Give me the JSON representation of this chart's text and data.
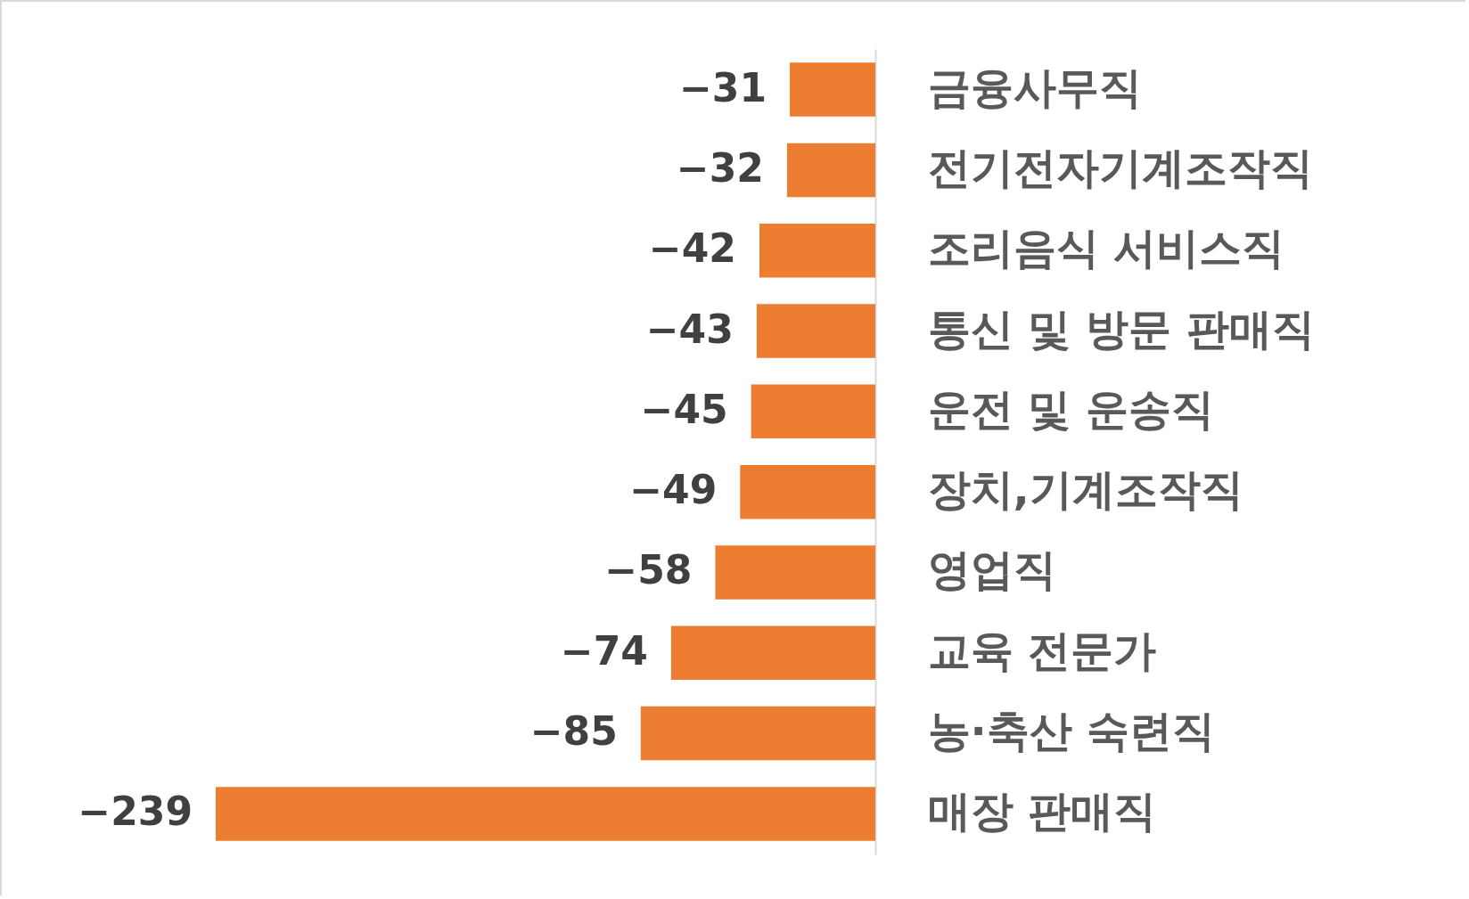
{
  "chart_data": {
    "type": "bar",
    "orientation": "horizontal",
    "categories": [
      "금융사무직",
      "전기전자기계조작직",
      "조리음식 서비스직",
      "통신 및 방문 판매직",
      "운전 및 운송직",
      "장치,기계조작직",
      "영업직",
      "교육 전문가",
      "농·축산 숙련직",
      "매장 판매직"
    ],
    "values": [
      -31,
      -32,
      -42,
      -43,
      -45,
      -49,
      -58,
      -74,
      -85,
      -239
    ],
    "color": "#ed7d31",
    "data_labels": true
  }
}
